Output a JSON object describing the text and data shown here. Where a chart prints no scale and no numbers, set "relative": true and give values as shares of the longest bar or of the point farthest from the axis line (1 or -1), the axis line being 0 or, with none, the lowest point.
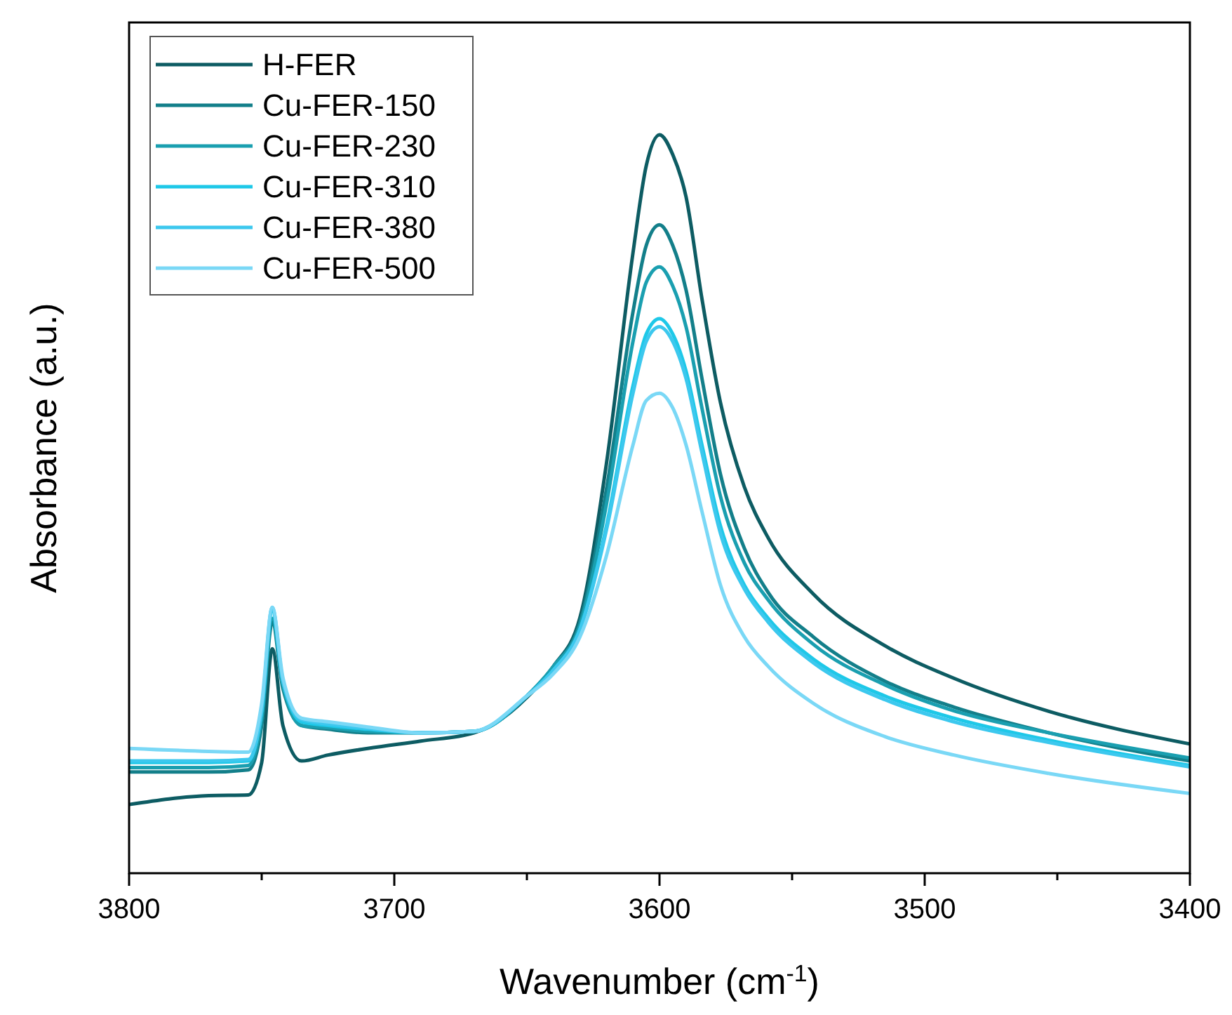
{
  "chart_data": {
    "type": "line",
    "relative": true,
    "xlabel": "Wavenumber (cm$^{-1}$)",
    "ylabel": "Absorbance (a.u.)",
    "xlim": [
      3800,
      3400
    ],
    "xticks": [
      3800,
      {
        "value": 3750,
        "label": null
      },
      3700,
      {
        "value": 3650,
        "label": null
      },
      3600,
      {
        "value": 3550,
        "label": null
      },
      3500,
      {
        "value": 3450,
        "label": null
      },
      3400
    ],
    "legend": "top left",
    "grid": false,
    "x": [
      3800,
      3770,
      3755,
      3750,
      3746,
      3742,
      3735,
      3725,
      3710,
      3690,
      3670,
      3650,
      3640,
      3630,
      3620,
      3610,
      3605,
      3600,
      3595,
      3590,
      3584,
      3577,
      3568,
      3559,
      3542,
      3515,
      3489,
      3453,
      3400
    ],
    "series": [
      {
        "name": "H-FER",
        "color": "#0d5c63",
        "values": [
          0.093,
          0.105,
          0.106,
          0.15,
          0.304,
          0.2,
          0.152,
          0.16,
          0.169,
          0.179,
          0.19,
          0.238,
          0.28,
          0.346,
          0.555,
          0.84,
          0.958,
          1.0,
          0.973,
          0.916,
          0.778,
          0.637,
          0.523,
          0.454,
          0.378,
          0.308,
          0.264,
          0.219,
          0.175
        ]
      },
      {
        "name": "Cu-FER-150",
        "color": "#137f8a",
        "values": [
          0.137,
          0.137,
          0.14,
          0.2,
          0.34,
          0.25,
          0.2,
          0.195,
          0.19,
          0.19,
          0.192,
          0.24,
          0.28,
          0.34,
          0.52,
          0.76,
          0.85,
          0.878,
          0.85,
          0.79,
          0.67,
          0.54,
          0.44,
          0.38,
          0.32,
          0.26,
          0.225,
          0.19,
          0.152
        ]
      },
      {
        "name": "Cu-FER-230",
        "color": "#1a9fb0",
        "values": [
          0.143,
          0.143,
          0.146,
          0.21,
          0.345,
          0.255,
          0.2,
          0.197,
          0.192,
          0.19,
          0.192,
          0.24,
          0.28,
          0.335,
          0.5,
          0.72,
          0.8,
          0.821,
          0.795,
          0.74,
          0.63,
          0.51,
          0.42,
          0.37,
          0.31,
          0.255,
          0.22,
          0.19,
          0.156
        ]
      },
      {
        "name": "Cu-FER-310",
        "color": "#1ec8e8",
        "values": [
          0.15,
          0.15,
          0.152,
          0.22,
          0.355,
          0.26,
          0.205,
          0.2,
          0.195,
          0.19,
          0.192,
          0.24,
          0.275,
          0.33,
          0.47,
          0.66,
          0.73,
          0.751,
          0.73,
          0.68,
          0.58,
          0.47,
          0.39,
          0.345,
          0.29,
          0.24,
          0.21,
          0.18,
          0.146
        ]
      },
      {
        "name": "Cu-FER-380",
        "color": "#3cc8ee",
        "values": [
          0.152,
          0.152,
          0.154,
          0.22,
          0.36,
          0.26,
          0.208,
          0.202,
          0.196,
          0.19,
          0.192,
          0.24,
          0.275,
          0.33,
          0.465,
          0.65,
          0.72,
          0.74,
          0.72,
          0.67,
          0.57,
          0.46,
          0.385,
          0.34,
          0.285,
          0.235,
          0.205,
          0.177,
          0.144
        ]
      },
      {
        "name": "Cu-FER-500",
        "color": "#7ad8f6",
        "values": [
          0.169,
          0.165,
          0.164,
          0.23,
          0.36,
          0.265,
          0.21,
          0.205,
          0.198,
          0.19,
          0.192,
          0.24,
          0.27,
          0.32,
          0.43,
          0.58,
          0.64,
          0.65,
          0.63,
          0.58,
          0.49,
          0.39,
          0.32,
          0.28,
          0.23,
          0.185,
          0.16,
          0.135,
          0.108
        ]
      }
    ]
  }
}
